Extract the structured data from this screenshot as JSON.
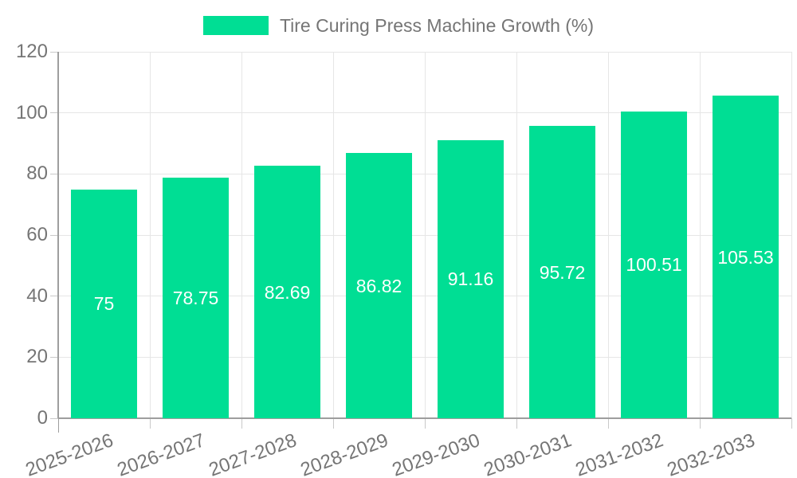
{
  "legend": {
    "title": "Tire Curing Press Machine Growth (%)"
  },
  "chart_data": {
    "type": "bar",
    "title": "Tire Curing Press Machine Growth (%)",
    "categories": [
      "2025-2026",
      "2026-2027",
      "2027-2028",
      "2028-2029",
      "2029-2030",
      "2030-2031",
      "2031-2032",
      "2032-2033"
    ],
    "values": [
      75,
      78.75,
      82.69,
      86.82,
      91.16,
      95.72,
      100.51,
      105.53
    ],
    "value_labels": [
      "75",
      "78.75",
      "82.69",
      "86.82",
      "91.16",
      "95.72",
      "100.51",
      "105.53"
    ],
    "xlabel": "",
    "ylabel": "",
    "ylim": [
      0,
      120
    ],
    "yticks": [
      0,
      20,
      40,
      60,
      80,
      100,
      120
    ],
    "grid": true,
    "legend_position": "top",
    "colors": {
      "bar": "#00DE94",
      "grid": "#e6e6e6",
      "tick": "#c9c9c9",
      "axis": "#9e9e9e",
      "text": "#757575",
      "value_text": "#ffffff"
    }
  }
}
